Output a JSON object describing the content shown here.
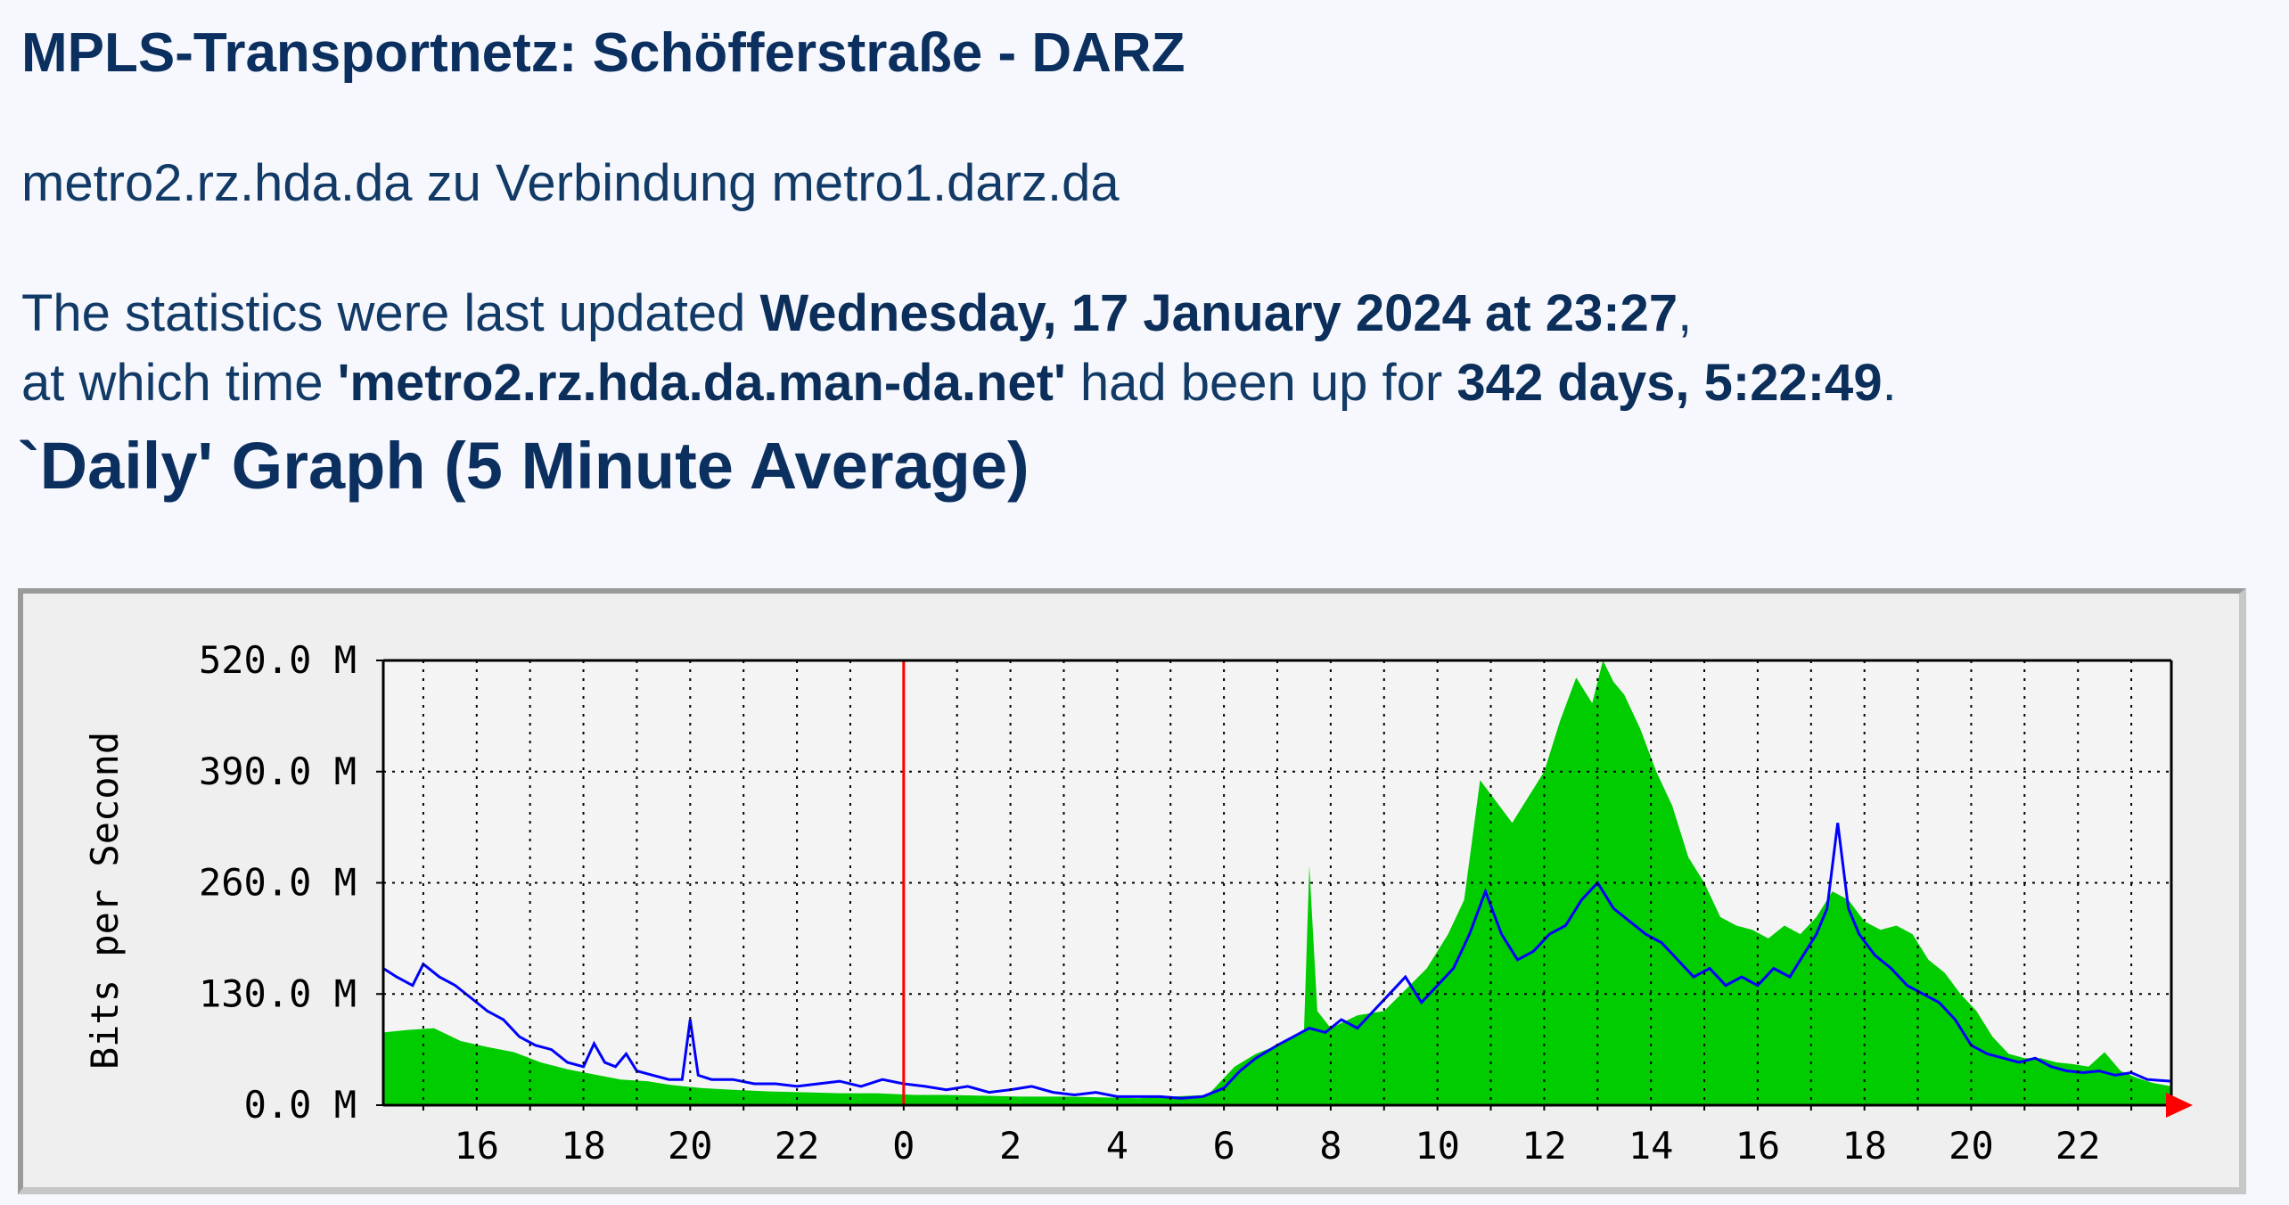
{
  "page": {
    "title": "MPLS-Transportnetz: Schöfferstraße - DARZ",
    "connection": "metro2.rz.hda.da zu Verbindung metro1.darz.da",
    "stats_prefix": "The statistics were last updated ",
    "stats_date": "Wednesday, 17 January 2024 at 23:27",
    "stats_comma": ",",
    "uptime_prefix": "at which time ",
    "uptime_host": "'metro2.rz.hda.da.man-da.net'",
    "uptime_mid": " had been up for ",
    "uptime_value": "342 days, 5:22:49",
    "uptime_end": ".",
    "graph_heading": "`Daily' Graph (5 Minute Average)"
  },
  "colors": {
    "in_fill": "#00cc00",
    "out_line": "#0000ff",
    "now_marker": "#ff0000",
    "grid": "#000000",
    "background": "#efefef"
  },
  "chart_data": {
    "type": "area",
    "ylabel": "Bits per Second",
    "ylim": [
      0,
      520
    ],
    "y_ticks": [
      0,
      130,
      260,
      390,
      520
    ],
    "y_tick_labels": [
      "0.0 M",
      "130.0 M",
      "260.0 M",
      "390.0 M",
      "520.0 M"
    ],
    "x_start_hour": 14.25,
    "x_end_hour": 47.75,
    "x_ticks": [
      16,
      18,
      20,
      22,
      24,
      26,
      28,
      30,
      32,
      34,
      36,
      38,
      40,
      42,
      44,
      46
    ],
    "x_tick_labels": [
      "16",
      "18",
      "20",
      "22",
      "0",
      "2",
      "4",
      "6",
      "8",
      "10",
      "12",
      "14",
      "16",
      "18",
      "20",
      "22"
    ],
    "midnight_hour": 24,
    "grid": true,
    "series": [
      {
        "style": "filled",
        "points": [
          [
            14.25,
            85
          ],
          [
            14.7,
            88
          ],
          [
            15.2,
            90
          ],
          [
            15.7,
            75
          ],
          [
            16.2,
            68
          ],
          [
            16.7,
            62
          ],
          [
            17.2,
            50
          ],
          [
            17.7,
            42
          ],
          [
            18.2,
            36
          ],
          [
            18.7,
            30
          ],
          [
            19.2,
            28
          ],
          [
            19.6,
            24
          ],
          [
            20.2,
            20
          ],
          [
            20.8,
            18
          ],
          [
            21.5,
            16
          ],
          [
            22.2,
            15
          ],
          [
            22.8,
            14
          ],
          [
            23.5,
            14
          ],
          [
            24.2,
            12
          ],
          [
            24.8,
            12
          ],
          [
            25.5,
            11
          ],
          [
            26.2,
            10
          ],
          [
            27,
            10
          ],
          [
            27.8,
            9
          ],
          [
            28.4,
            8
          ],
          [
            29,
            10
          ],
          [
            29.7,
            12
          ],
          [
            30.2,
            45
          ],
          [
            30.6,
            60
          ],
          [
            31,
            70
          ],
          [
            31.3,
            80
          ],
          [
            31.5,
            85
          ],
          [
            31.6,
            280
          ],
          [
            31.75,
            110
          ],
          [
            32,
            90
          ],
          [
            32.5,
            105
          ],
          [
            33,
            110
          ],
          [
            33.4,
            135
          ],
          [
            33.8,
            160
          ],
          [
            34.2,
            200
          ],
          [
            34.5,
            240
          ],
          [
            34.8,
            380
          ],
          [
            35.1,
            355
          ],
          [
            35.4,
            330
          ],
          [
            35.7,
            360
          ],
          [
            36,
            390
          ],
          [
            36.3,
            450
          ],
          [
            36.6,
            500
          ],
          [
            36.9,
            470
          ],
          [
            37.1,
            520
          ],
          [
            37.3,
            495
          ],
          [
            37.5,
            480
          ],
          [
            37.8,
            440
          ],
          [
            38.1,
            390
          ],
          [
            38.4,
            350
          ],
          [
            38.7,
            290
          ],
          [
            39,
            260
          ],
          [
            39.3,
            220
          ],
          [
            39.6,
            210
          ],
          [
            39.9,
            205
          ],
          [
            40.2,
            195
          ],
          [
            40.5,
            210
          ],
          [
            40.8,
            200
          ],
          [
            41.1,
            220
          ],
          [
            41.4,
            250
          ],
          [
            41.7,
            240
          ],
          [
            42,
            215
          ],
          [
            42.3,
            205
          ],
          [
            42.6,
            210
          ],
          [
            42.9,
            200
          ],
          [
            43.2,
            170
          ],
          [
            43.5,
            155
          ],
          [
            43.8,
            130
          ],
          [
            44.1,
            110
          ],
          [
            44.4,
            80
          ],
          [
            44.7,
            60
          ],
          [
            45,
            55
          ],
          [
            45.3,
            55
          ],
          [
            45.6,
            50
          ],
          [
            45.9,
            48
          ],
          [
            46.2,
            45
          ],
          [
            46.5,
            62
          ],
          [
            46.8,
            40
          ],
          [
            47.1,
            32
          ],
          [
            47.4,
            26
          ],
          [
            47.75,
            22
          ]
        ]
      },
      {
        "style": "line",
        "points": [
          [
            14.25,
            160
          ],
          [
            14.5,
            150
          ],
          [
            14.8,
            140
          ],
          [
            15.0,
            165
          ],
          [
            15.3,
            150
          ],
          [
            15.6,
            140
          ],
          [
            15.9,
            125
          ],
          [
            16.2,
            110
          ],
          [
            16.5,
            100
          ],
          [
            16.8,
            80
          ],
          [
            17.1,
            70
          ],
          [
            17.4,
            65
          ],
          [
            17.7,
            50
          ],
          [
            18.0,
            45
          ],
          [
            18.2,
            72
          ],
          [
            18.4,
            50
          ],
          [
            18.6,
            45
          ],
          [
            18.8,
            60
          ],
          [
            19.0,
            40
          ],
          [
            19.3,
            35
          ],
          [
            19.6,
            30
          ],
          [
            19.85,
            30
          ],
          [
            20.0,
            100
          ],
          [
            20.15,
            35
          ],
          [
            20.4,
            30
          ],
          [
            20.8,
            30
          ],
          [
            21.2,
            25
          ],
          [
            21.6,
            25
          ],
          [
            22.0,
            22
          ],
          [
            22.4,
            25
          ],
          [
            22.8,
            28
          ],
          [
            23.2,
            22
          ],
          [
            23.6,
            30
          ],
          [
            24.0,
            25
          ],
          [
            24.4,
            22
          ],
          [
            24.8,
            18
          ],
          [
            25.2,
            22
          ],
          [
            25.6,
            15
          ],
          [
            26.0,
            18
          ],
          [
            26.4,
            22
          ],
          [
            26.8,
            15
          ],
          [
            27.2,
            12
          ],
          [
            27.6,
            15
          ],
          [
            28.0,
            10
          ],
          [
            28.4,
            10
          ],
          [
            28.8,
            10
          ],
          [
            29.2,
            8
          ],
          [
            29.6,
            10
          ],
          [
            30.0,
            20
          ],
          [
            30.3,
            40
          ],
          [
            30.6,
            55
          ],
          [
            31.0,
            70
          ],
          [
            31.3,
            80
          ],
          [
            31.6,
            90
          ],
          [
            31.9,
            85
          ],
          [
            32.2,
            100
          ],
          [
            32.5,
            90
          ],
          [
            32.8,
            110
          ],
          [
            33.1,
            130
          ],
          [
            33.4,
            150
          ],
          [
            33.7,
            120
          ],
          [
            34.0,
            140
          ],
          [
            34.3,
            160
          ],
          [
            34.6,
            200
          ],
          [
            34.9,
            250
          ],
          [
            35.2,
            200
          ],
          [
            35.5,
            170
          ],
          [
            35.8,
            180
          ],
          [
            36.1,
            200
          ],
          [
            36.4,
            210
          ],
          [
            36.7,
            240
          ],
          [
            37.0,
            260
          ],
          [
            37.3,
            230
          ],
          [
            37.6,
            215
          ],
          [
            37.9,
            200
          ],
          [
            38.2,
            190
          ],
          [
            38.5,
            170
          ],
          [
            38.8,
            150
          ],
          [
            39.1,
            160
          ],
          [
            39.4,
            140
          ],
          [
            39.7,
            150
          ],
          [
            40.0,
            140
          ],
          [
            40.3,
            160
          ],
          [
            40.6,
            150
          ],
          [
            40.9,
            180
          ],
          [
            41.1,
            200
          ],
          [
            41.3,
            230
          ],
          [
            41.5,
            330
          ],
          [
            41.7,
            230
          ],
          [
            41.9,
            200
          ],
          [
            42.2,
            175
          ],
          [
            42.5,
            160
          ],
          [
            42.8,
            140
          ],
          [
            43.1,
            130
          ],
          [
            43.4,
            120
          ],
          [
            43.7,
            100
          ],
          [
            44.0,
            70
          ],
          [
            44.3,
            60
          ],
          [
            44.6,
            55
          ],
          [
            44.9,
            50
          ],
          [
            45.2,
            55
          ],
          [
            45.5,
            45
          ],
          [
            45.8,
            40
          ],
          [
            46.1,
            38
          ],
          [
            46.4,
            40
          ],
          [
            46.7,
            35
          ],
          [
            47.0,
            38
          ],
          [
            47.3,
            30
          ],
          [
            47.75,
            28
          ]
        ]
      }
    ]
  }
}
